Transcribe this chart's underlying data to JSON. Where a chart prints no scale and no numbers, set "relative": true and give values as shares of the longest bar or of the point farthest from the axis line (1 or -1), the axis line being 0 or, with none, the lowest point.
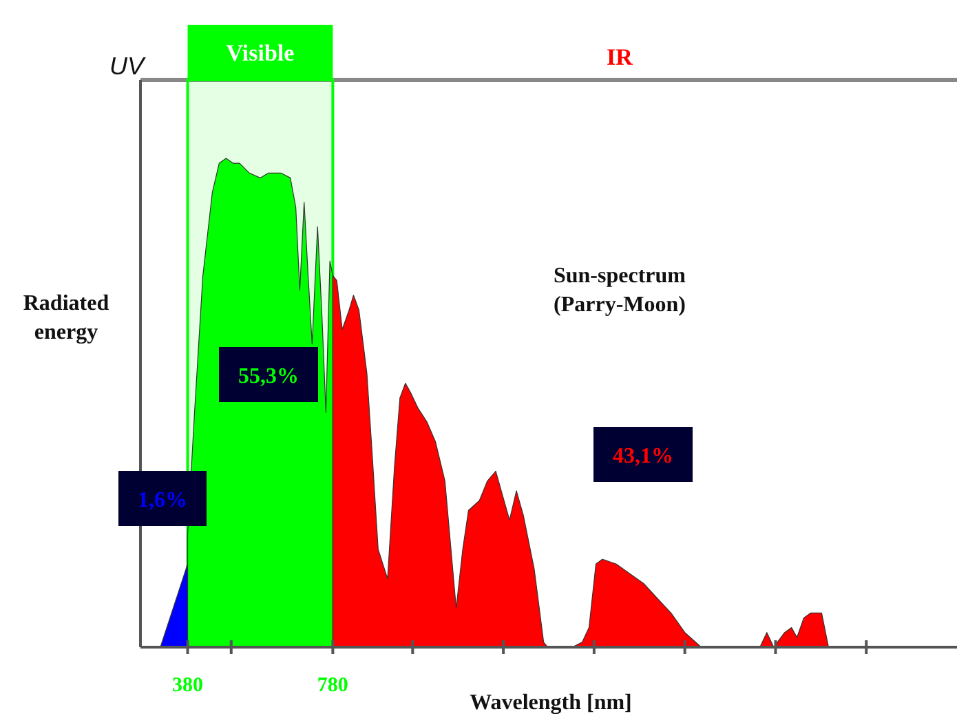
{
  "chart_data": {
    "type": "area",
    "relative": true,
    "xlabel": "Wavelength [nm]",
    "ylabel": "Radiated energy",
    "xlim": [
      250,
      2500
    ],
    "xticks": [
      {
        "value": 380,
        "label": "380"
      },
      {
        "value": 500,
        "label": null
      },
      {
        "value": 780,
        "label": "780"
      },
      {
        "value": 1000,
        "label": null
      },
      {
        "value": 1250,
        "label": null
      },
      {
        "value": 1500,
        "label": null
      },
      {
        "value": 1750,
        "label": null
      },
      {
        "value": 2000,
        "label": null
      },
      {
        "value": 2250,
        "label": null
      }
    ],
    "series": [
      {
        "color": "#0000ff",
        "x": [
          305,
          380
        ],
        "values": [
          0,
          0.17
        ]
      },
      {
        "color": "#00ff00",
        "x": [
          380,
          399,
          422,
          448,
          467,
          486,
          505,
          523,
          550,
          580,
          603,
          637,
          663,
          678,
          689,
          701,
          712,
          723,
          738,
          750,
          761,
          772,
          780
        ],
        "values": [
          0.23,
          0.48,
          0.76,
          0.93,
          0.99,
          1,
          0.99,
          0.99,
          0.97,
          0.96,
          0.97,
          0.97,
          0.96,
          0.9,
          0.73,
          0.91,
          0.76,
          0.62,
          0.86,
          0.68,
          0.48,
          0.79,
          0.76
        ]
      },
      {
        "color": "#ff0000",
        "x": [
          780,
          791,
          806,
          825,
          837,
          852,
          874,
          889,
          905,
          931,
          950,
          965,
          980,
          995,
          1014,
          1040,
          1063,
          1089,
          1120,
          1138,
          1154,
          1184,
          1206,
          1229,
          1248,
          1267,
          1286,
          1305,
          1335,
          1361,
          1372,
          1440,
          1467,
          1486,
          1505,
          1523,
          1561,
          1599,
          1637,
          1674,
          1712,
          1750,
          1795,
          1957,
          1976,
          1995,
          2025,
          2044,
          2059,
          2078,
          2097,
          2127,
          2146
        ],
        "values": [
          0.76,
          0.75,
          0.65,
          0.69,
          0.72,
          0.69,
          0.56,
          0.39,
          0.2,
          0.14,
          0.37,
          0.51,
          0.54,
          0.52,
          0.49,
          0.46,
          0.42,
          0.34,
          0.08,
          0.2,
          0.28,
          0.3,
          0.34,
          0.36,
          0.31,
          0.26,
          0.32,
          0.27,
          0.16,
          0.01,
          0,
          0,
          0.01,
          0.04,
          0.17,
          0.18,
          0.17,
          0.15,
          0.13,
          0.1,
          0.07,
          0.03,
          0,
          0,
          0.03,
          0,
          0.03,
          0.04,
          0.02,
          0.06,
          0.07,
          0.07,
          0
        ]
      }
    ],
    "bands": [
      {
        "axis": "x",
        "from": 380,
        "to": 780,
        "label": "Visible",
        "color": "#00ff00"
      }
    ],
    "annotations": [
      "UV",
      "IR",
      "1,6%",
      "55,3%",
      "43,1%",
      "Sun-spectrum (Parry-Moon)"
    ]
  }
}
